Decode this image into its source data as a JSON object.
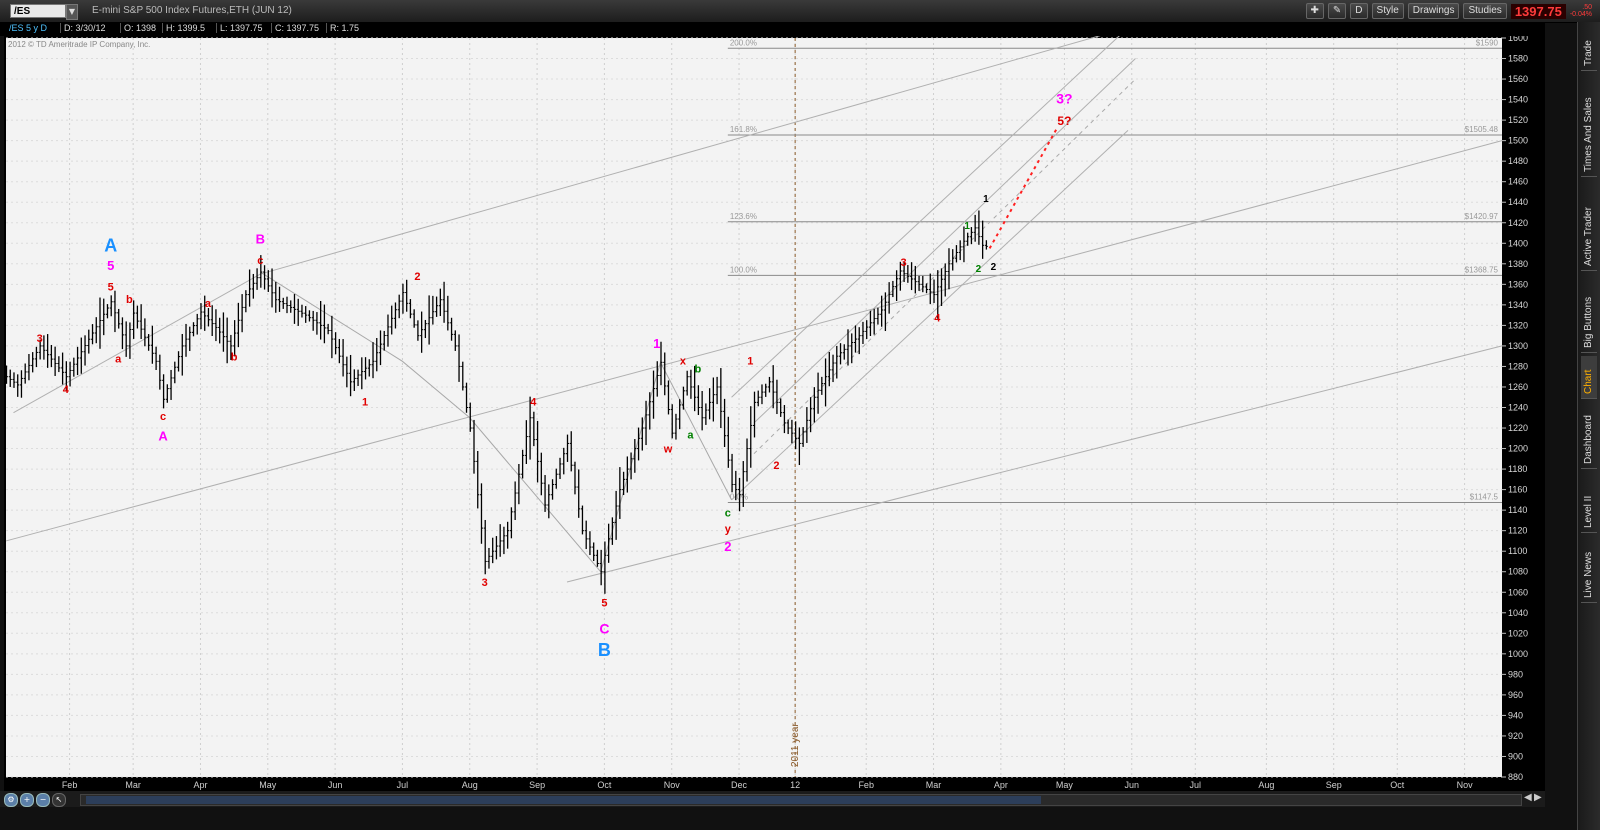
{
  "toolbar": {
    "symbol": "/ES",
    "instrument_title": "E-mini S&P 500 Index Futures,ETH (JUN 12)",
    "style_label": "Style",
    "drawings_label": "Drawings",
    "studies_label": "Studies",
    "d_label": "D",
    "last_price": "1397.75",
    "change_top": ".50",
    "change_bottom": "-0.04%"
  },
  "infobar": {
    "period": "/ES 5 y D",
    "date": "D: 3/30/12",
    "open": "O: 1398",
    "high": "H: 1399.5",
    "low": "L: 1397.75",
    "close": "C: 1397.75",
    "range": "R: 1.75"
  },
  "copyright": "2012 © TD Ameritrade IP Company, Inc.",
  "right_tabs": [
    "Trade",
    "Times And Sales",
    "Active Trader",
    "Big Buttons",
    "Chart",
    "Dashboard",
    "Level II",
    "Live News"
  ],
  "colors": {
    "chart_bg": "#f3f3f3",
    "bars": "#000000",
    "red": "#e00000",
    "magenta": "#ff00ff",
    "blue": "#1a90ff",
    "green": "#008000"
  },
  "chart_data": {
    "type": "ohlc",
    "ylim": [
      880,
      1600
    ],
    "yticks": [
      1600,
      1580,
      1560,
      1540,
      1520,
      1500,
      1480,
      1460,
      1440,
      1420,
      1400,
      1380,
      1360,
      1340,
      1320,
      1300,
      1280,
      1260,
      1240,
      1220,
      1200,
      1180,
      1160,
      1140,
      1120,
      1100,
      1080,
      1060,
      1040,
      1020,
      1000,
      980,
      960,
      940,
      920,
      900,
      880
    ],
    "x_labels": [
      "Feb",
      "Mar",
      "Apr",
      "May",
      "Jun",
      "Jul",
      "Aug",
      "Sep",
      "Oct",
      "Nov",
      "Dec",
      "12",
      "Feb",
      "Mar",
      "Apr",
      "May",
      "Jun",
      "Jul",
      "Aug",
      "Sep",
      "Oct",
      "Nov"
    ],
    "x_label_index": [
      17,
      34,
      52,
      70,
      88,
      106,
      124,
      142,
      160,
      178,
      196,
      211,
      230,
      248,
      266,
      283,
      301,
      318,
      337,
      355,
      372,
      390
    ],
    "bar_count": 400,
    "data_end_index": 262,
    "year_marker": "2011 year",
    "year_marker_index": 211,
    "price_path": [
      [
        0,
        1270
      ],
      [
        3,
        1262
      ],
      [
        9,
        1300
      ],
      [
        16,
        1270
      ],
      [
        28,
        1343
      ],
      [
        32,
        1300
      ],
      [
        34,
        1332
      ],
      [
        40,
        1285
      ],
      [
        42,
        1248
      ],
      [
        47,
        1300
      ],
      [
        52,
        1333
      ],
      [
        56,
        1318
      ],
      [
        60,
        1300
      ],
      [
        64,
        1350
      ],
      [
        68,
        1372
      ],
      [
        72,
        1345
      ],
      [
        80,
        1330
      ],
      [
        86,
        1315
      ],
      [
        92,
        1265
      ],
      [
        98,
        1285
      ],
      [
        106,
        1352
      ],
      [
        110,
        1310
      ],
      [
        116,
        1345
      ],
      [
        120,
        1300
      ],
      [
        124,
        1220
      ],
      [
        128,
        1090
      ],
      [
        134,
        1120
      ],
      [
        140,
        1230
      ],
      [
        144,
        1145
      ],
      [
        150,
        1205
      ],
      [
        154,
        1120
      ],
      [
        159,
        1080
      ],
      [
        164,
        1160
      ],
      [
        170,
        1220
      ],
      [
        175,
        1284
      ],
      [
        178,
        1215
      ],
      [
        182,
        1270
      ],
      [
        186,
        1230
      ],
      [
        190,
        1260
      ],
      [
        194,
        1165
      ],
      [
        196,
        1155
      ],
      [
        200,
        1245
      ],
      [
        204,
        1265
      ],
      [
        208,
        1225
      ],
      [
        212,
        1205
      ],
      [
        216,
        1250
      ],
      [
        222,
        1290
      ],
      [
        228,
        1310
      ],
      [
        234,
        1335
      ],
      [
        239,
        1373
      ],
      [
        244,
        1360
      ],
      [
        248,
        1350
      ],
      [
        252,
        1380
      ],
      [
        256,
        1402
      ],
      [
        259,
        1415
      ],
      [
        261,
        1398
      ],
      [
        262,
        1397
      ]
    ],
    "reference_lines": [
      {
        "label": "$1590",
        "value": 1590,
        "pct": "200.0%"
      },
      {
        "label": "$1505.48",
        "value": 1505.48,
        "pct": "161.8%"
      },
      {
        "label": "$1420.97",
        "value": 1420.97,
        "pct": "123.6%"
      },
      {
        "label": "$1368.75",
        "value": 1368.75,
        "pct": "100.0%"
      },
      {
        "label": "$1147.5",
        "value": 1147.5,
        "pct": "0.0%"
      }
    ],
    "channels": [
      {
        "from": [
          0,
          1110
        ],
        "to": [
          400,
          1500
        ]
      },
      {
        "from": [
          150,
          1070
        ],
        "to": [
          400,
          1300
        ]
      },
      {
        "from": [
          194,
          1250
        ],
        "to": [
          300,
          1610
        ]
      },
      {
        "from": [
          194,
          1150
        ],
        "to": [
          300,
          1510
        ]
      },
      {
        "from": [
          200,
          1225
        ],
        "to": [
          302,
          1580
        ]
      },
      {
        "from": [
          2,
          1235
        ],
        "to": [
          68,
          1370
        ]
      },
      {
        "from": [
          68,
          1370
        ],
        "to": [
          300,
          1610
        ]
      }
    ],
    "projection": {
      "from": [
        263,
        1395
      ],
      "to": [
        281,
        1512
      ]
    },
    "zigzag": [
      [
        68,
        1372
      ],
      [
        106,
        1285
      ],
      [
        124,
        1230
      ],
      [
        159,
        1080
      ],
      [
        175,
        1284
      ],
      [
        194,
        1150
      ]
    ],
    "wave_labels": [
      {
        "text": "A",
        "x": 28,
        "y": 1392,
        "color": "blue",
        "size": 18
      },
      {
        "text": "5",
        "x": 28,
        "y": 1374,
        "color": "magenta",
        "size": 13
      },
      {
        "text": "5",
        "x": 28,
        "y": 1354,
        "color": "red",
        "size": 11
      },
      {
        "text": "3",
        "x": 9,
        "y": 1304,
        "color": "red",
        "size": 11
      },
      {
        "text": "4",
        "x": 16,
        "y": 1254,
        "color": "red",
        "size": 11
      },
      {
        "text": "b",
        "x": 33,
        "y": 1342,
        "color": "red",
        "size": 11
      },
      {
        "text": "a",
        "x": 30,
        "y": 1284,
        "color": "red",
        "size": 11
      },
      {
        "text": "c",
        "x": 42,
        "y": 1228,
        "color": "red",
        "size": 11
      },
      {
        "text": "A",
        "x": 42,
        "y": 1208,
        "color": "magenta",
        "size": 13
      },
      {
        "text": "a",
        "x": 54,
        "y": 1338,
        "color": "red",
        "size": 11
      },
      {
        "text": "b",
        "x": 61,
        "y": 1286,
        "color": "red",
        "size": 11
      },
      {
        "text": "B",
        "x": 68,
        "y": 1400,
        "color": "magenta",
        "size": 13
      },
      {
        "text": "c",
        "x": 68,
        "y": 1380,
        "color": "red",
        "size": 11
      },
      {
        "text": "2",
        "x": 110,
        "y": 1364,
        "color": "red",
        "size": 11
      },
      {
        "text": "1",
        "x": 96,
        "y": 1242,
        "color": "red",
        "size": 11
      },
      {
        "text": "4",
        "x": 141,
        "y": 1242,
        "color": "red",
        "size": 11
      },
      {
        "text": "3",
        "x": 128,
        "y": 1066,
        "color": "red",
        "size": 11
      },
      {
        "text": "5",
        "x": 160,
        "y": 1046,
        "color": "red",
        "size": 11
      },
      {
        "text": "C",
        "x": 160,
        "y": 1020,
        "color": "magenta",
        "size": 14
      },
      {
        "text": "B",
        "x": 160,
        "y": 998,
        "color": "blue",
        "size": 18
      },
      {
        "text": "1",
        "x": 174,
        "y": 1298,
        "color": "magenta",
        "size": 13
      },
      {
        "text": "x",
        "x": 181,
        "y": 1282,
        "color": "red",
        "size": 11
      },
      {
        "text": "b",
        "x": 185,
        "y": 1274,
        "color": "green",
        "size": 11
      },
      {
        "text": "a",
        "x": 183,
        "y": 1210,
        "color": "green",
        "size": 11
      },
      {
        "text": "w",
        "x": 177,
        "y": 1196,
        "color": "red",
        "size": 11
      },
      {
        "text": "c",
        "x": 193,
        "y": 1134,
        "color": "green",
        "size": 11
      },
      {
        "text": "y",
        "x": 193,
        "y": 1118,
        "color": "red",
        "size": 11
      },
      {
        "text": "2",
        "x": 193,
        "y": 1100,
        "color": "magenta",
        "size": 13
      },
      {
        "text": "1",
        "x": 199,
        "y": 1282,
        "color": "red",
        "size": 11
      },
      {
        "text": "2",
        "x": 206,
        "y": 1180,
        "color": "red",
        "size": 11
      },
      {
        "text": "3",
        "x": 240,
        "y": 1378,
        "color": "red",
        "size": 11
      },
      {
        "text": "4",
        "x": 249,
        "y": 1324,
        "color": "red",
        "size": 11
      },
      {
        "text": "1",
        "x": 257,
        "y": 1414,
        "color": "green",
        "size": 10
      },
      {
        "text": "2",
        "x": 260,
        "y": 1372,
        "color": "green",
        "size": 10
      },
      {
        "text": "1",
        "x": 262,
        "y": 1440,
        "color": "black",
        "size": 10
      },
      {
        "text": "2",
        "x": 264,
        "y": 1374,
        "color": "black",
        "size": 10
      },
      {
        "text": "3?",
        "x": 283,
        "y": 1536,
        "color": "magenta",
        "size": 14
      },
      {
        "text": "5?",
        "x": 283,
        "y": 1515,
        "color": "red",
        "size": 12
      }
    ]
  }
}
